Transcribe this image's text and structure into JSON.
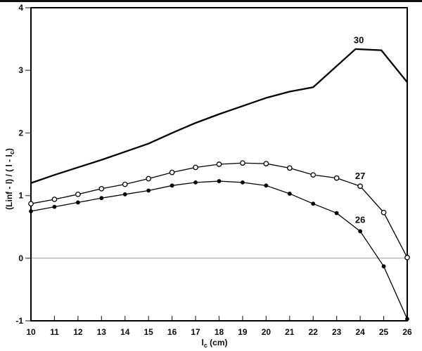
{
  "figure": {
    "background_color": "#ffffff",
    "frame_color": "#000000",
    "zero_gridline_color": "#999999",
    "tick_color": "#555555",
    "text_color": "#0b0b0b"
  },
  "chart_data": {
    "type": "line",
    "title": "",
    "xlabel": {
      "prefix": "l",
      "sub": "c",
      "suffix": " (cm)"
    },
    "ylabel": {
      "prefix": "(Linf - l) / ( l - l",
      "sub": "c",
      "suffix": ")"
    },
    "xlim": [
      10,
      26
    ],
    "ylim": [
      -1,
      4
    ],
    "xticks": [
      10,
      11,
      12,
      13,
      14,
      15,
      16,
      17,
      18,
      19,
      20,
      21,
      22,
      23,
      24,
      25,
      26
    ],
    "yticks": [
      -1,
      0,
      1,
      2,
      3,
      4
    ],
    "grid": "single horizontal gridline at y=0",
    "legend_position": "inline labels near right end of each curve",
    "series": [
      {
        "name": "30",
        "marker": "none",
        "line_width": 2.3,
        "color": "#000000",
        "points": [
          [
            10,
            1.2
          ],
          [
            11,
            1.33
          ],
          [
            12,
            1.45
          ],
          [
            13,
            1.57
          ],
          [
            14,
            1.7
          ],
          [
            15,
            1.83
          ],
          [
            16,
            2.0
          ],
          [
            17,
            2.16
          ],
          [
            18,
            2.3
          ],
          [
            19,
            2.43
          ],
          [
            20,
            2.56
          ],
          [
            21,
            2.66
          ],
          [
            22,
            2.73
          ],
          [
            23.8,
            3.34
          ],
          [
            24.9,
            3.32
          ],
          [
            26,
            2.81
          ]
        ]
      },
      {
        "name": "27",
        "marker": "open-circle",
        "line_width": 1.3,
        "color": "#000000",
        "points": [
          [
            10,
            0.87
          ],
          [
            11,
            0.94
          ],
          [
            12,
            1.02
          ],
          [
            13,
            1.11
          ],
          [
            14,
            1.18
          ],
          [
            15,
            1.27
          ],
          [
            16,
            1.37
          ],
          [
            17,
            1.45
          ],
          [
            18,
            1.5
          ],
          [
            19,
            1.52
          ],
          [
            20,
            1.51
          ],
          [
            21,
            1.44
          ],
          [
            22,
            1.33
          ],
          [
            23,
            1.28
          ],
          [
            24,
            1.15
          ],
          [
            25,
            0.73
          ],
          [
            26,
            0.01
          ]
        ]
      },
      {
        "name": "26",
        "marker": "filled-circle",
        "line_width": 1.3,
        "color": "#000000",
        "points": [
          [
            10,
            0.75
          ],
          [
            11,
            0.82
          ],
          [
            12,
            0.89
          ],
          [
            13,
            0.96
          ],
          [
            14,
            1.02
          ],
          [
            15,
            1.08
          ],
          [
            16,
            1.16
          ],
          [
            17,
            1.21
          ],
          [
            18,
            1.23
          ],
          [
            19,
            1.21
          ],
          [
            20,
            1.16
          ],
          [
            21,
            1.03
          ],
          [
            22,
            0.87
          ],
          [
            23,
            0.72
          ],
          [
            24,
            0.43
          ],
          [
            25,
            -0.13
          ],
          [
            26,
            -0.97
          ]
        ]
      }
    ],
    "series_labels": [
      {
        "text": "30",
        "x": 23.94,
        "y": 3.48
      },
      {
        "text": "27",
        "x": 24.0,
        "y": 1.31
      },
      {
        "text": "26",
        "x": 24.0,
        "y": 0.61
      }
    ]
  }
}
